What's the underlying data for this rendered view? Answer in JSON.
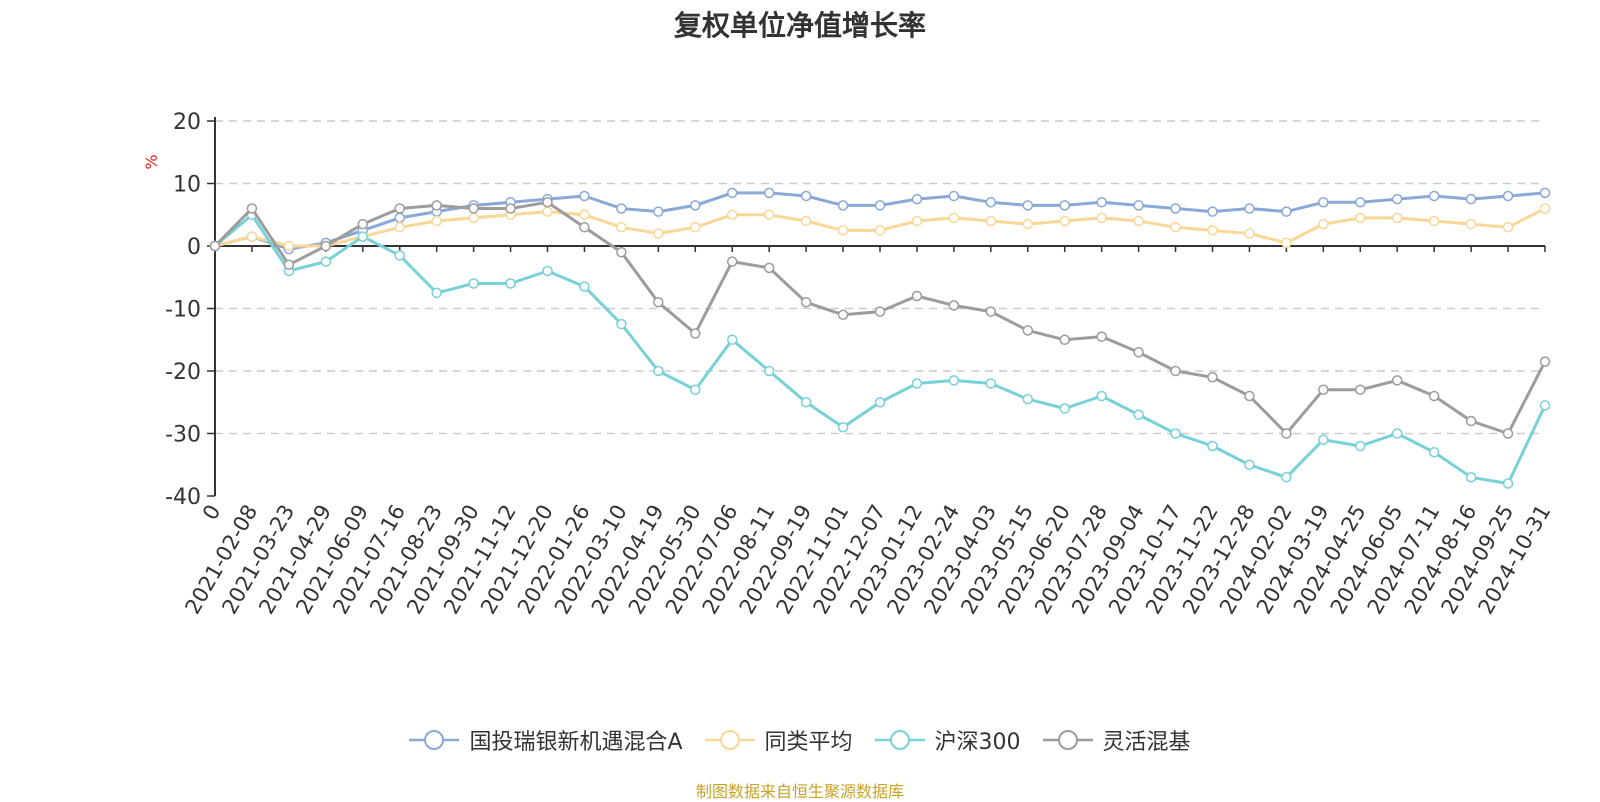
{
  "chart_data": {
    "type": "line",
    "title": "复权单位净值增长率",
    "ylabel": "%",
    "ylim": [
      -40,
      20
    ],
    "yticks": [
      20,
      10,
      0,
      -10,
      -20,
      -30,
      -40
    ],
    "grid": true,
    "legend_position": "bottom",
    "x_categories": [
      "0",
      "2021-02-08",
      "2021-03-23",
      "2021-04-29",
      "2021-06-09",
      "2021-07-16",
      "2021-08-23",
      "2021-09-30",
      "2021-11-12",
      "2021-12-20",
      "2022-01-26",
      "2022-03-10",
      "2022-04-19",
      "2022-05-30",
      "2022-07-06",
      "2022-08-11",
      "2022-09-19",
      "2022-11-01",
      "2022-12-07",
      "2023-01-12",
      "2023-02-24",
      "2023-04-03",
      "2023-05-15",
      "2023-06-20",
      "2023-07-28",
      "2023-09-04",
      "2023-10-17",
      "2023-11-22",
      "2023-12-28",
      "2024-02-02",
      "2024-03-19",
      "2024-04-25",
      "2024-06-05",
      "2024-07-11",
      "2024-08-16",
      "2024-09-25",
      "2024-10-31"
    ],
    "series": [
      {
        "name": "国投瑞银新机遇混合A",
        "color": "#8aa8d8",
        "values": [
          0,
          1.5,
          -0.5,
          0.5,
          2.5,
          4.5,
          5.5,
          6.5,
          7,
          7.5,
          8,
          6,
          5.5,
          6.5,
          8.5,
          8.5,
          8,
          6.5,
          6.5,
          7.5,
          8,
          7,
          6.5,
          6.5,
          7,
          6.5,
          6,
          5.5,
          6,
          5.5,
          7,
          7,
          7.5,
          8,
          7.5,
          8,
          8.5
        ]
      },
      {
        "name": "同类平均",
        "color": "#fad797",
        "values": [
          0,
          1.5,
          0,
          0,
          1.5,
          3,
          4,
          4.5,
          5,
          5.5,
          5,
          3,
          2,
          3,
          5,
          5,
          4,
          2.5,
          2.5,
          4,
          4.5,
          4,
          3.5,
          4,
          4.5,
          4,
          3,
          2.5,
          2,
          0.5,
          3.5,
          4.5,
          4.5,
          4,
          3.5,
          3,
          6
        ]
      },
      {
        "name": "沪深300",
        "color": "#78d1d6",
        "values": [
          0,
          5,
          -4,
          -2.5,
          1.5,
          -1.5,
          -7.5,
          -6,
          -6,
          -4,
          -6.5,
          -12.5,
          -20,
          -23,
          -15,
          -20,
          -25,
          -29,
          -25,
          -22,
          -21.5,
          -22,
          -24.5,
          -26,
          -24,
          -27,
          -30,
          -32,
          -35,
          -37,
          -31,
          -32,
          -30,
          -33,
          -37,
          -38,
          -25.5
        ]
      },
      {
        "name": "灵活混基",
        "color": "#9c9c9c",
        "values": [
          0,
          6,
          -3,
          0,
          3.5,
          6,
          6.5,
          6,
          6,
          7,
          3,
          -1,
          -9,
          -14,
          -2.5,
          -3.5,
          -9,
          -11,
          -10.5,
          -8,
          -9.5,
          -10.5,
          -13.5,
          -15,
          -14.5,
          -17,
          -20,
          -21,
          -24,
          -30,
          -23,
          -23,
          -21.5,
          -24,
          -28,
          -30,
          -18.5
        ]
      }
    ]
  },
  "legend": {
    "items": [
      {
        "label": "国投瑞银新机遇混合A",
        "color": "#8aa8d8"
      },
      {
        "label": "同类平均",
        "color": "#fad797"
      },
      {
        "label": "沪深300",
        "color": "#78d1d6"
      },
      {
        "label": "灵活混基",
        "color": "#9c9c9c"
      }
    ]
  },
  "source_note": "制图数据来自恒生聚源数据库"
}
